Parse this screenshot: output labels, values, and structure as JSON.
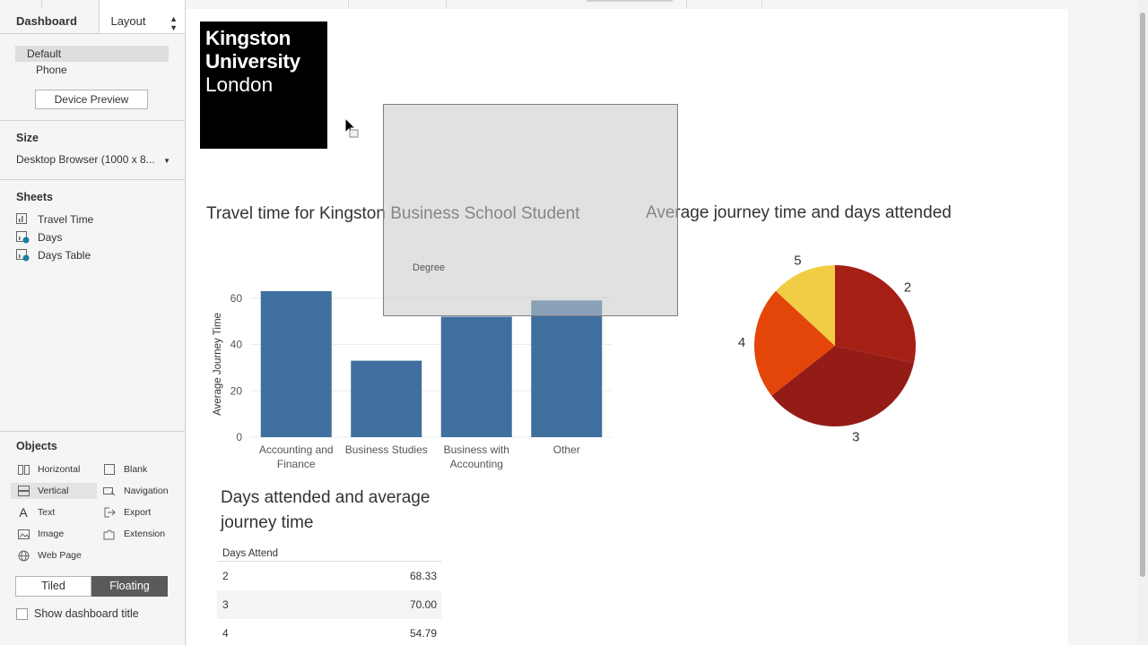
{
  "panel": {
    "tabs": {
      "dashboard": "Dashboard",
      "layout": "Layout"
    },
    "devices": {
      "default": "Default",
      "phone": "Phone",
      "preview_button": "Device Preview"
    },
    "size": {
      "title": "Size",
      "value": "Desktop Browser (1000 x 8..."
    },
    "sheets": {
      "title": "Sheets",
      "items": [
        "Travel Time",
        "Days",
        "Days Table"
      ]
    },
    "objects": {
      "title": "Objects",
      "items": {
        "horizontal": "Horizontal",
        "blank": "Blank",
        "vertical": "Vertical",
        "navigation": "Navigation",
        "text": "Text",
        "export": "Export",
        "image": "Image",
        "extension": "Extension",
        "web_page": "Web Page"
      }
    },
    "layout_mode": {
      "tiled": "Tiled",
      "floating": "Floating"
    },
    "show_title": "Show dashboard title"
  },
  "logo": {
    "line1": "Kingston",
    "line2": "University",
    "line3": "London"
  },
  "overlay": {
    "label": "Degree"
  },
  "chart_data": [
    {
      "type": "bar",
      "title": "Travel time for Kingston Business School Student",
      "ylabel": "Average Journey Time",
      "categories": [
        [
          "Accounting and",
          "Finance"
        ],
        [
          "Business Studies"
        ],
        [
          "Business with",
          "Accounting"
        ],
        [
          "Other"
        ]
      ],
      "values": [
        63,
        33,
        52,
        59
      ],
      "yticks": [
        0,
        20,
        40,
        60
      ],
      "ylim": [
        0,
        63
      ],
      "color": "#3f6f9f",
      "grid": true
    },
    {
      "type": "pie",
      "title": "Average journey time and days attended",
      "slices": [
        {
          "label": "2",
          "value": 28.4,
          "color": "#a51f15"
        },
        {
          "label": "3",
          "value": 36.0,
          "color": "#941c17"
        },
        {
          "label": "4",
          "value": 22.5,
          "color": "#e4460a"
        },
        {
          "label": "5",
          "value": 13.1,
          "color": "#f0cd45"
        }
      ]
    }
  ],
  "table": {
    "title": "Days attended and average journey time",
    "header": "Days Attend",
    "rows": [
      {
        "day": "2",
        "value": "68.33"
      },
      {
        "day": "3",
        "value": "70.00"
      },
      {
        "day": "4",
        "value": "54.79"
      }
    ]
  }
}
